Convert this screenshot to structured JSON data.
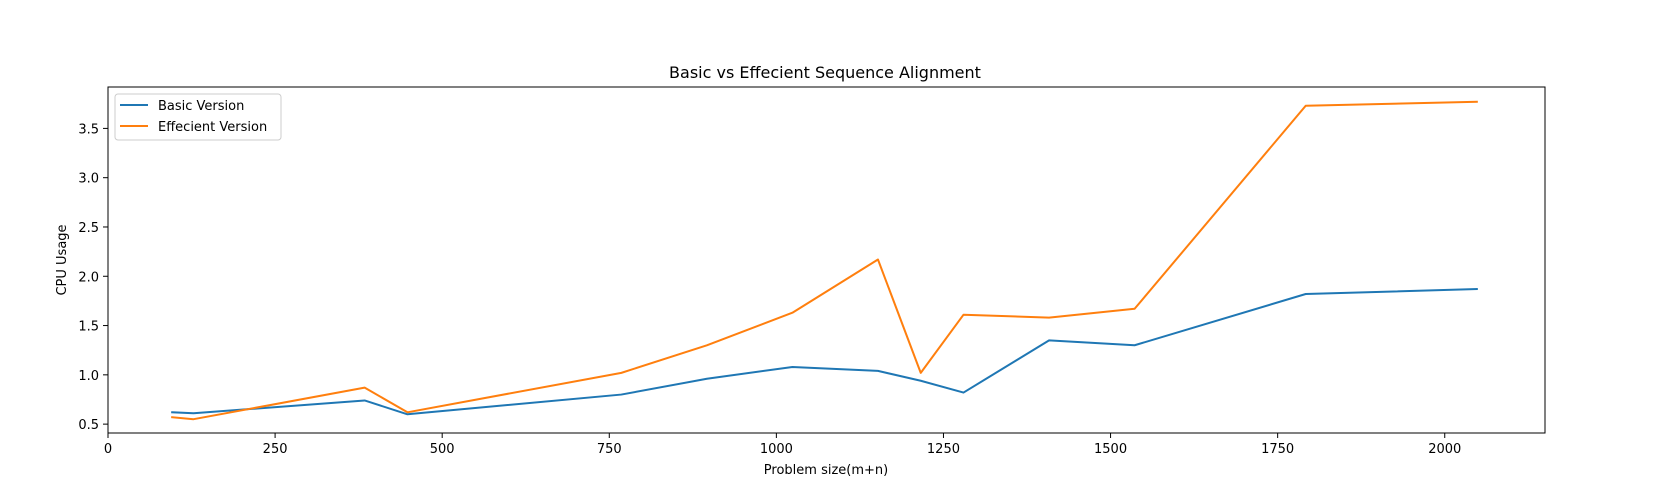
{
  "chart_data": {
    "type": "line",
    "title": "Basic vs Effecient Sequence Alignment",
    "xlabel": "Problem size(m+n)",
    "ylabel": "CPU Usage",
    "xlim": [
      0,
      2150
    ],
    "ylim": [
      0.41,
      3.92
    ],
    "xticks": [
      0,
      250,
      500,
      750,
      1000,
      1250,
      1500,
      1750,
      2000
    ],
    "yticks": [
      0.5,
      1.0,
      1.5,
      2.0,
      2.5,
      3.0,
      3.5
    ],
    "grid": false,
    "legend_position": "upper-left",
    "series": [
      {
        "name": "Basic Version",
        "color": "#1f77b4",
        "x": [
          96,
          128,
          384,
          448,
          768,
          896,
          1024,
          1152,
          1216,
          1280,
          1408,
          1536,
          1792,
          2048
        ],
        "y": [
          0.62,
          0.61,
          0.74,
          0.6,
          0.8,
          0.96,
          1.08,
          1.04,
          0.94,
          0.82,
          1.35,
          1.3,
          1.82,
          1.87
        ]
      },
      {
        "name": "Effecient Version",
        "color": "#ff7f0e",
        "x": [
          96,
          128,
          384,
          448,
          768,
          896,
          1024,
          1152,
          1216,
          1280,
          1408,
          1536,
          1792,
          2048
        ],
        "y": [
          0.57,
          0.55,
          0.87,
          0.62,
          1.02,
          1.3,
          1.63,
          2.17,
          1.02,
          1.61,
          1.58,
          1.67,
          3.73,
          3.77
        ]
      }
    ]
  }
}
